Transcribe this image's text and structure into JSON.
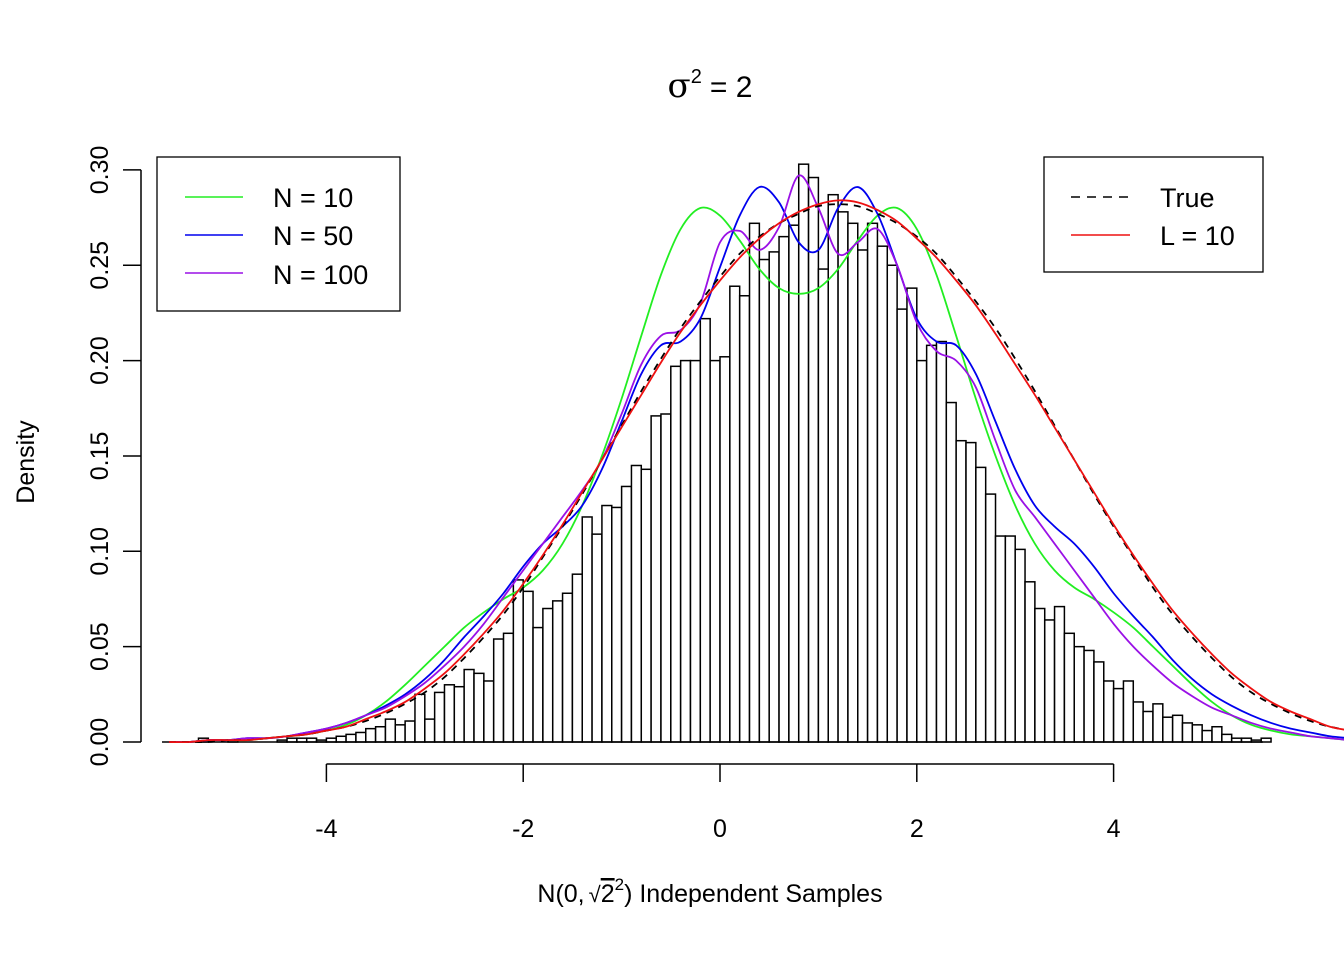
{
  "chart_data": {
    "type": "bar",
    "title": "σ² = 2",
    "title_base": "σ",
    "title_sup": "2",
    "title_rest": "= 2",
    "xlabel": "N(0, √2²) Independent Samples",
    "xlabel_parts": {
      "pre": "N(0,",
      "sqrt": "√",
      "radicand": "2",
      "sup": "2",
      "post": ") Independent Samples"
    },
    "ylabel": "Density",
    "xlim": [
      -5.6,
      5.6
    ],
    "ylim": [
      0,
      0.3
    ],
    "x_ticks": [
      -4,
      -2,
      0,
      2,
      4
    ],
    "x_tick_labels": [
      "-4",
      "-2",
      "0",
      "2",
      "4"
    ],
    "y_ticks": [
      0,
      0.05,
      0.1,
      0.15,
      0.2,
      0.25,
      0.3
    ],
    "y_tick_labels": [
      "0.00",
      "0.05",
      "0.10",
      "0.15",
      "0.20",
      "0.25",
      "0.30"
    ],
    "grid": false,
    "histogram": {
      "bin_width": 0.1,
      "bin_start": -5.6,
      "densities": [
        0,
        0,
        0,
        0.002,
        0,
        0,
        0.001,
        0,
        0,
        0,
        0,
        0.001,
        0.002,
        0.002,
        0.002,
        0.001,
        0.002,
        0.003,
        0.004,
        0.005,
        0.007,
        0.008,
        0.012,
        0.009,
        0.011,
        0.025,
        0.012,
        0.026,
        0.03,
        0.029,
        0.038,
        0.036,
        0.032,
        0.054,
        0.057,
        0.085,
        0.079,
        0.06,
        0.07,
        0.074,
        0.078,
        0.088,
        0.118,
        0.109,
        0.124,
        0.123,
        0.134,
        0.145,
        0.143,
        0.171,
        0.172,
        0.197,
        0.2,
        0.2,
        0.222,
        0.2,
        0.202,
        0.239,
        0.234,
        0.272,
        0.253,
        0.257,
        0.265,
        0.271,
        0.303,
        0.296,
        0.248,
        0.287,
        0.278,
        0.272,
        0.258,
        0.272,
        0.26,
        0.25,
        0.227,
        0.238,
        0.2,
        0.208,
        0.21,
        0.178,
        0.158,
        0.157,
        0.144,
        0.13,
        0.108,
        0.108,
        0.101,
        0.084,
        0.07,
        0.064,
        0.071,
        0.057,
        0.05,
        0.048,
        0.042,
        0.032,
        0.028,
        0.032,
        0.021,
        0.016,
        0.02,
        0.013,
        0.014,
        0.01,
        0.009,
        0.006,
        0.008,
        0.004,
        0.002,
        0.002,
        0.001,
        0.002,
        0,
        0,
        0,
        0,
        0,
        0,
        0,
        0,
        0,
        0
      ]
    },
    "curve_x_start": -5.6,
    "curve_x_step": 0.2,
    "series": [
      {
        "name": "N = 10",
        "color": "#22ee22",
        "dash": false,
        "values": [
          0.0,
          0.0,
          0.001,
          0.001,
          0.001,
          0.002,
          0.003,
          0.004,
          0.006,
          0.009,
          0.014,
          0.021,
          0.03,
          0.04,
          0.05,
          0.06,
          0.068,
          0.075,
          0.081,
          0.09,
          0.104,
          0.124,
          0.15,
          0.18,
          0.213,
          0.245,
          0.269,
          0.28,
          0.276,
          0.263,
          0.248,
          0.238,
          0.235,
          0.238,
          0.248,
          0.263,
          0.276,
          0.28,
          0.269,
          0.245,
          0.213,
          0.18,
          0.15,
          0.124,
          0.104,
          0.09,
          0.081,
          0.075,
          0.068,
          0.06,
          0.05,
          0.04,
          0.03,
          0.021,
          0.014,
          0.009,
          0.006,
          0.004,
          0.003,
          0.002,
          0.001,
          0.001,
          0.0
        ]
      },
      {
        "name": "N = 50",
        "color": "#0000ee",
        "dash": false,
        "values": [
          0.0,
          0.0,
          0.001,
          0.001,
          0.002,
          0.002,
          0.003,
          0.005,
          0.007,
          0.01,
          0.014,
          0.019,
          0.025,
          0.033,
          0.043,
          0.055,
          0.066,
          0.078,
          0.092,
          0.104,
          0.113,
          0.124,
          0.143,
          0.168,
          0.193,
          0.208,
          0.21,
          0.222,
          0.249,
          0.276,
          0.291,
          0.283,
          0.262,
          0.258,
          0.28,
          0.291,
          0.277,
          0.25,
          0.222,
          0.21,
          0.208,
          0.193,
          0.168,
          0.143,
          0.124,
          0.113,
          0.104,
          0.092,
          0.078,
          0.066,
          0.055,
          0.043,
          0.033,
          0.025,
          0.019,
          0.014,
          0.01,
          0.007,
          0.005,
          0.003,
          0.002,
          0.001,
          0.0
        ]
      },
      {
        "name": "N = 100",
        "color": "#9a10e6",
        "dash": false,
        "values": [
          0.0,
          0.0,
          0.001,
          0.001,
          0.002,
          0.002,
          0.003,
          0.005,
          0.007,
          0.01,
          0.014,
          0.018,
          0.024,
          0.031,
          0.04,
          0.05,
          0.062,
          0.076,
          0.09,
          0.104,
          0.118,
          0.132,
          0.148,
          0.172,
          0.198,
          0.213,
          0.216,
          0.23,
          0.262,
          0.268,
          0.258,
          0.27,
          0.297,
          0.28,
          0.256,
          0.262,
          0.269,
          0.25,
          0.22,
          0.205,
          0.2,
          0.186,
          0.158,
          0.132,
          0.118,
          0.104,
          0.09,
          0.076,
          0.062,
          0.05,
          0.04,
          0.031,
          0.024,
          0.018,
          0.014,
          0.01,
          0.007,
          0.005,
          0.003,
          0.002,
          0.001,
          0.001,
          0.0
        ]
      },
      {
        "name": "True",
        "color": "#000000",
        "dash": true,
        "values": [
          0.0,
          0.0,
          0.0,
          0.001,
          0.001,
          0.002,
          0.003,
          0.004,
          0.006,
          0.008,
          0.011,
          0.015,
          0.02,
          0.026,
          0.034,
          0.044,
          0.055,
          0.067,
          0.081,
          0.097,
          0.113,
          0.13,
          0.148,
          0.166,
          0.184,
          0.201,
          0.217,
          0.231,
          0.244,
          0.256,
          0.265,
          0.272,
          0.277,
          0.281,
          0.282,
          0.281,
          0.277,
          0.272,
          0.265,
          0.256,
          0.244,
          0.231,
          0.217,
          0.201,
          0.184,
          0.166,
          0.148,
          0.13,
          0.113,
          0.097,
          0.081,
          0.067,
          0.055,
          0.044,
          0.034,
          0.026,
          0.02,
          0.015,
          0.011,
          0.008,
          0.006,
          0.004,
          0.003
        ]
      },
      {
        "name": "L = 10",
        "color": "#ee1111",
        "dash": false,
        "values": [
          0.0,
          0.0,
          0.001,
          0.001,
          0.001,
          0.002,
          0.003,
          0.004,
          0.006,
          0.008,
          0.012,
          0.016,
          0.021,
          0.028,
          0.036,
          0.046,
          0.057,
          0.069,
          0.083,
          0.098,
          0.114,
          0.131,
          0.148,
          0.165,
          0.182,
          0.199,
          0.215,
          0.229,
          0.242,
          0.254,
          0.264,
          0.272,
          0.278,
          0.282,
          0.284,
          0.283,
          0.279,
          0.273,
          0.264,
          0.254,
          0.242,
          0.229,
          0.214,
          0.198,
          0.182,
          0.165,
          0.148,
          0.131,
          0.114,
          0.098,
          0.083,
          0.069,
          0.057,
          0.046,
          0.036,
          0.028,
          0.021,
          0.016,
          0.012,
          0.008,
          0.006,
          0.004,
          0.002
        ]
      }
    ],
    "legends": [
      {
        "position": "top-left",
        "entries": [
          "N = 10",
          "N = 50",
          "N = 100"
        ]
      },
      {
        "position": "top-right",
        "entries": [
          "True",
          "L = 10"
        ]
      }
    ]
  }
}
